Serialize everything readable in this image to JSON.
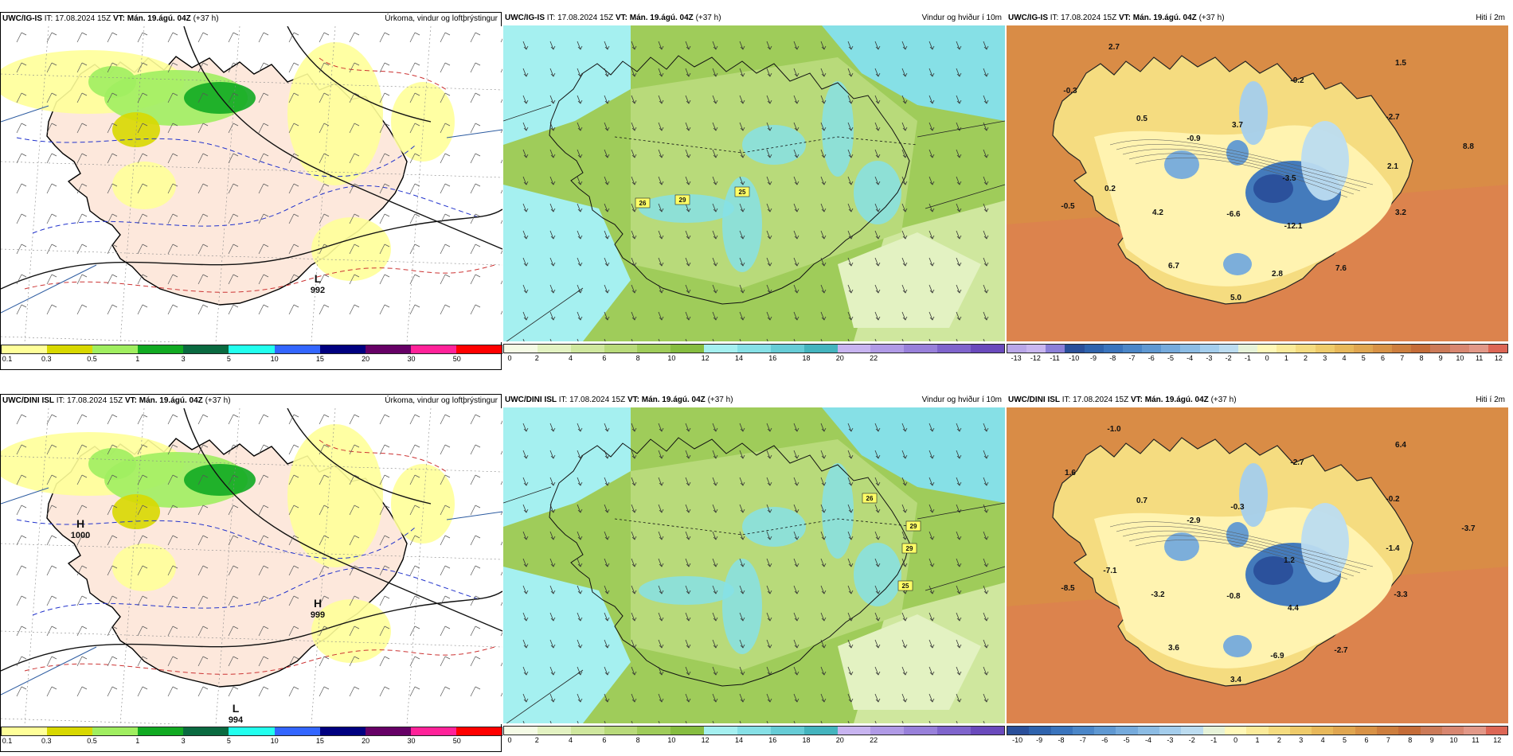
{
  "panels": [
    {
      "id": "r1c1",
      "model": "UWC/IG-IS",
      "it_label": "IT: 17.08.2024 15Z",
      "vt_prefix": "VT:",
      "vt_value": "Mán. 19.ágú. 04Z",
      "lead": "(+37 h)",
      "right_title": "Úrkoma, vindur og loftþrýstingur",
      "type": "precip",
      "highs_lows": [
        {
          "letter": "L",
          "value": "992"
        }
      ],
      "colorbar": {
        "colors": [
          "#ffff99",
          "#d8d800",
          "#a0ee60",
          "#11aa22",
          "#0a6a40",
          "#22ffee",
          "#3366ff",
          "#000080",
          "#660066",
          "#ff2299",
          "#ff0000"
        ],
        "ticks": [
          "0.1",
          "0.3",
          "0.5",
          "1",
          "3",
          "5",
          "10",
          "15",
          "20",
          "30",
          "50"
        ]
      }
    },
    {
      "id": "r1c2",
      "model": "UWC/IG-IS",
      "it_label": "IT: 17.08.2024 15Z",
      "vt_prefix": "VT:",
      "vt_value": "Mán. 19.ágú. 04Z",
      "lead": "(+37 h)",
      "right_title": "Vindur og hviður í 10m",
      "type": "wind",
      "gusts": [
        "26",
        "29",
        "25"
      ],
      "colorbar": {
        "colors": [
          "#f5fbe6",
          "#e3f2c2",
          "#cfe79e",
          "#b8da7a",
          "#9fcc5a",
          "#86bd40",
          "#a5f0f0",
          "#86e0e6",
          "#66ccd6",
          "#44b4be",
          "#c8b4f0",
          "#b09ae6",
          "#9880da",
          "#7f64cc",
          "#6a4abc"
        ],
        "ticks": [
          "0",
          "2",
          "4",
          "6",
          "8",
          "10",
          "12",
          "14",
          "16",
          "18",
          "20",
          "22"
        ]
      }
    },
    {
      "id": "r1c3",
      "model": "UWC/IG-IS",
      "it_label": "IT: 17.08.2024 15Z",
      "vt_prefix": "VT:",
      "vt_value": "Mán. 19.ágú. 04Z",
      "lead": "(+37 h)",
      "right_title": "Hiti í 2m",
      "type": "temp",
      "labels": [
        "2.7",
        "-0.3",
        "0.5",
        "-0.9",
        "3.7",
        "-0.2",
        "1.5",
        "-2.7",
        "8.8",
        "2.1",
        "-3.5",
        "0.2",
        "-0.5",
        "4.2",
        "-6.6",
        "-12.1",
        "3.2",
        "6.7",
        "2.8",
        "7.6",
        "5.0"
      ],
      "colorbar": {
        "colors": [
          "#b9a6e8",
          "#c9b6f0",
          "#8b7fd8",
          "#2a4f9a",
          "#2f63ad",
          "#3a74bd",
          "#4b86c8",
          "#5f98d2",
          "#75aadc",
          "#8cbce4",
          "#a4cdec",
          "#bcdcf0",
          "#e6f2d8",
          "#fff8b8",
          "#fbeb9a",
          "#f5dc80",
          "#efcb6a",
          "#e8b85a",
          "#e0a650",
          "#d89246",
          "#cd7e3e",
          "#c56c38",
          "#cc7a58",
          "#d88670",
          "#e29888",
          "#dd6655"
        ],
        "ticks": [
          "-13",
          "-12",
          "-11",
          "-10",
          "-9",
          "-8",
          "-7",
          "-6",
          "-5",
          "-4",
          "-3",
          "-2",
          "-1",
          "0",
          "1",
          "2",
          "3",
          "4",
          "5",
          "6",
          "7",
          "8",
          "9",
          "10",
          "11",
          "12"
        ]
      }
    },
    {
      "id": "r2c1",
      "model": "UWC/DINI ISL",
      "it_label": "IT: 17.08.2024 15Z",
      "vt_prefix": "VT:",
      "vt_value": "Mán. 19.ágú. 04Z",
      "lead": "(+37 h)",
      "right_title": "Úrkoma, vindur og loftþrýstingur",
      "type": "precip",
      "highs_lows": [
        {
          "letter": "H",
          "value": "1000"
        },
        {
          "letter": "H",
          "value": "999"
        },
        {
          "letter": "L",
          "value": "994"
        }
      ],
      "colorbar": {
        "colors": [
          "#ffff99",
          "#d8d800",
          "#a0ee60",
          "#11aa22",
          "#0a6a40",
          "#22ffee",
          "#3366ff",
          "#000080",
          "#660066",
          "#ff2299",
          "#ff0000"
        ],
        "ticks": [
          "0.1",
          "0.3",
          "0.5",
          "1",
          "3",
          "5",
          "10",
          "15",
          "20",
          "30",
          "50"
        ]
      }
    },
    {
      "id": "r2c2",
      "model": "UWC/DINI ISL",
      "it_label": "IT: 17.08.2024 15Z",
      "vt_prefix": "VT:",
      "vt_value": "Mán. 19.ágú. 04Z",
      "lead": "(+37 h)",
      "right_title": "Vindur og hviður í 10m",
      "type": "wind",
      "gusts": [
        "26",
        "29",
        "29",
        "25"
      ],
      "colorbar": {
        "colors": [
          "#f5fbe6",
          "#e3f2c2",
          "#cfe79e",
          "#b8da7a",
          "#9fcc5a",
          "#86bd40",
          "#a5f0f0",
          "#86e0e6",
          "#66ccd6",
          "#44b4be",
          "#c8b4f0",
          "#b09ae6",
          "#9880da",
          "#7f64cc",
          "#6a4abc"
        ],
        "ticks": [
          "0",
          "2",
          "4",
          "6",
          "8",
          "10",
          "12",
          "14",
          "16",
          "18",
          "20",
          "22"
        ]
      }
    },
    {
      "id": "r2c3",
      "model": "UWC/DINI ISL",
      "it_label": "IT: 17.08.2024 15Z",
      "vt_prefix": "VT:",
      "vt_value": "Mán. 19.ágú. 04Z",
      "lead": "(+37 h)",
      "right_title": "Hiti í 2m",
      "type": "temp",
      "labels": [
        "-1.0",
        "1.6",
        "0.7",
        "-2.9",
        "-0.3",
        "-2.7",
        "6.4",
        "-0.2",
        "-3.7",
        "-1.4",
        "1.2",
        "-7.1",
        "-8.5",
        "-3.2",
        "-0.8",
        "4.4",
        "-3.3",
        "3.6",
        "-6.9",
        "-2.7",
        "3.4"
      ],
      "colorbar": {
        "colors": [
          "#2a4f9a",
          "#2f63ad",
          "#3a74bd",
          "#4b86c8",
          "#5f98d2",
          "#75aadc",
          "#8cbce4",
          "#a4cdec",
          "#bcdcf0",
          "#e6f2d8",
          "#fff8b8",
          "#fbeb9a",
          "#f5dc80",
          "#efcb6a",
          "#e8b85a",
          "#e0a650",
          "#d89246",
          "#cd7e3e",
          "#c56c38",
          "#cc7a58",
          "#d88670",
          "#e29888",
          "#dd6655"
        ],
        "ticks": [
          "-10",
          "-9",
          "-8",
          "-7",
          "-6",
          "-5",
          "-4",
          "-3",
          "-2",
          "-1",
          "0",
          "1",
          "2",
          "3",
          "4",
          "5",
          "6",
          "7",
          "8",
          "9",
          "10",
          "11",
          "12"
        ]
      }
    }
  ]
}
